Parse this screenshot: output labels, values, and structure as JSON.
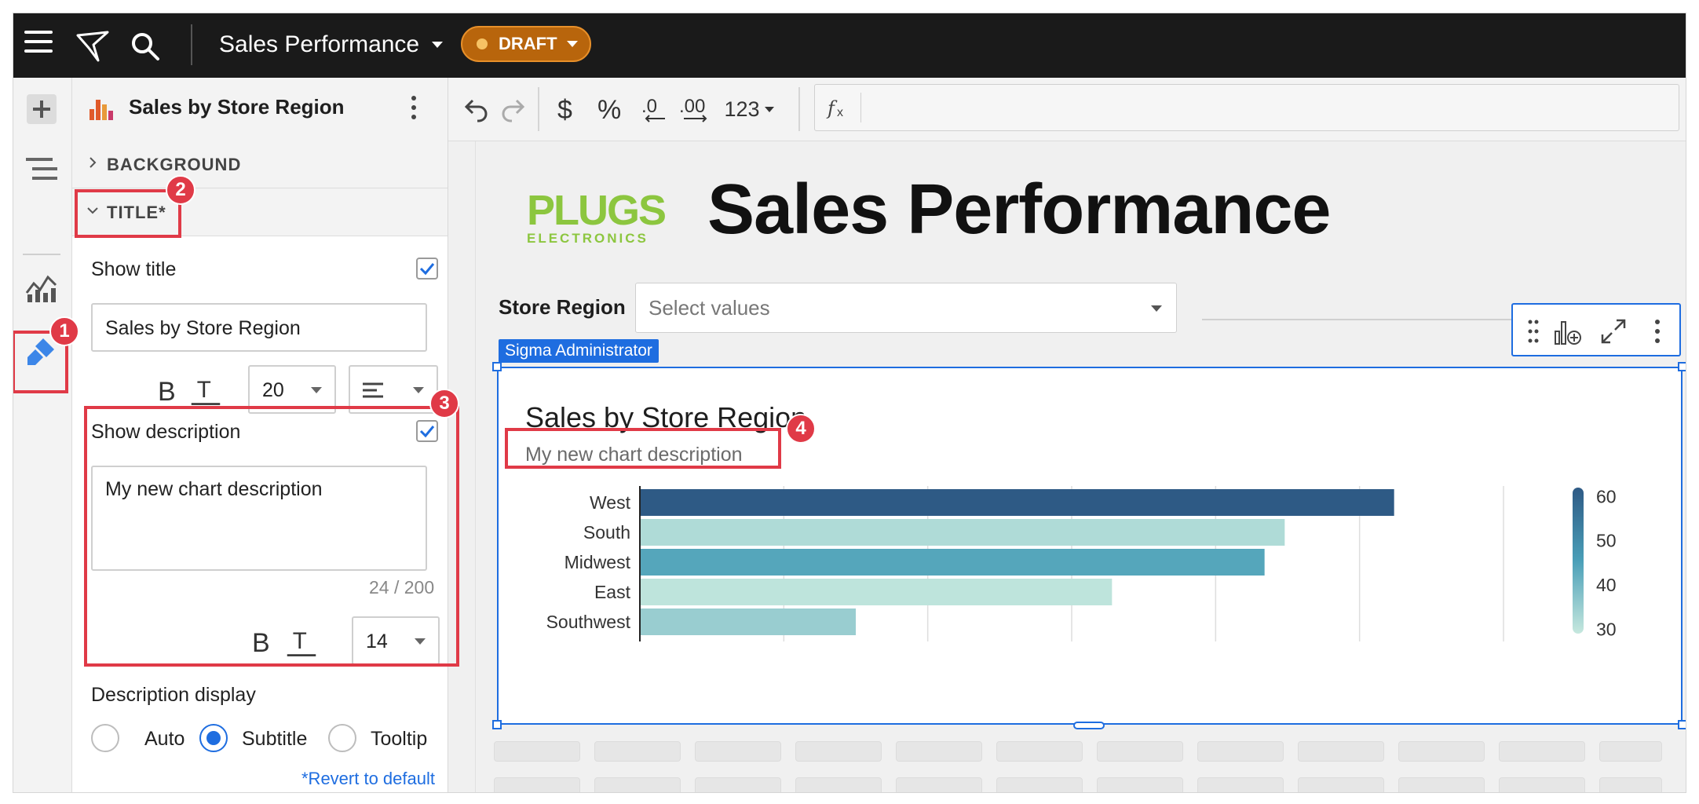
{
  "topbar": {
    "workbook_title": "Sales Performance",
    "status_badge": "DRAFT"
  },
  "panel": {
    "element_title": "Sales by Store Region",
    "sections": {
      "background_label": "BACKGROUND",
      "title_label": "TITLE*"
    },
    "show_title_label": "Show title",
    "title_value": "Sales by Store Region",
    "title_font_size": "20",
    "show_description_label": "Show description",
    "description_value": "My new chart description",
    "description_counter": "24 / 200",
    "description_font_size": "14",
    "description_display_label": "Description display",
    "display_options": [
      "Auto",
      "Subtitle",
      "Tooltip"
    ],
    "display_selected": "Subtitle",
    "revert_label": "*Revert to default",
    "show_title_checked": true,
    "show_description_checked": true
  },
  "toolbar": {
    "number_format_label": "123"
  },
  "canvas": {
    "page_title": "Sales Performance",
    "brand_name": "PLUGS",
    "brand_sub": "ELECTRONICS",
    "filter_label": "Store Region",
    "filter_placeholder": "Select values",
    "admin_tag": "Sigma Administrator"
  },
  "callouts": [
    "1",
    "2",
    "3",
    "4"
  ],
  "colors": {
    "accent": "#1e6de0",
    "callout_red": "#e03a47",
    "draft_orange": "#b8650c",
    "brand_green": "#8cc63f",
    "scale_high": "#2e5a85",
    "scale_low": "#c6e8de"
  },
  "chart_data": {
    "type": "bar",
    "orientation": "horizontal",
    "title": "Sales by Store Region",
    "subtitle": "My new chart description",
    "categories": [
      "West",
      "South",
      "Midwest",
      "East",
      "Southwest"
    ],
    "values": [
      2.62,
      2.24,
      2.17,
      1.64,
      0.75
    ],
    "color_values": [
      62,
      32,
      44,
      30,
      35
    ],
    "color_scale": {
      "min": 29,
      "max": 62,
      "ticks": [
        60,
        50,
        40,
        30
      ]
    },
    "xlim": [
      0,
      3.0
    ],
    "grid": true,
    "legend": "right"
  }
}
